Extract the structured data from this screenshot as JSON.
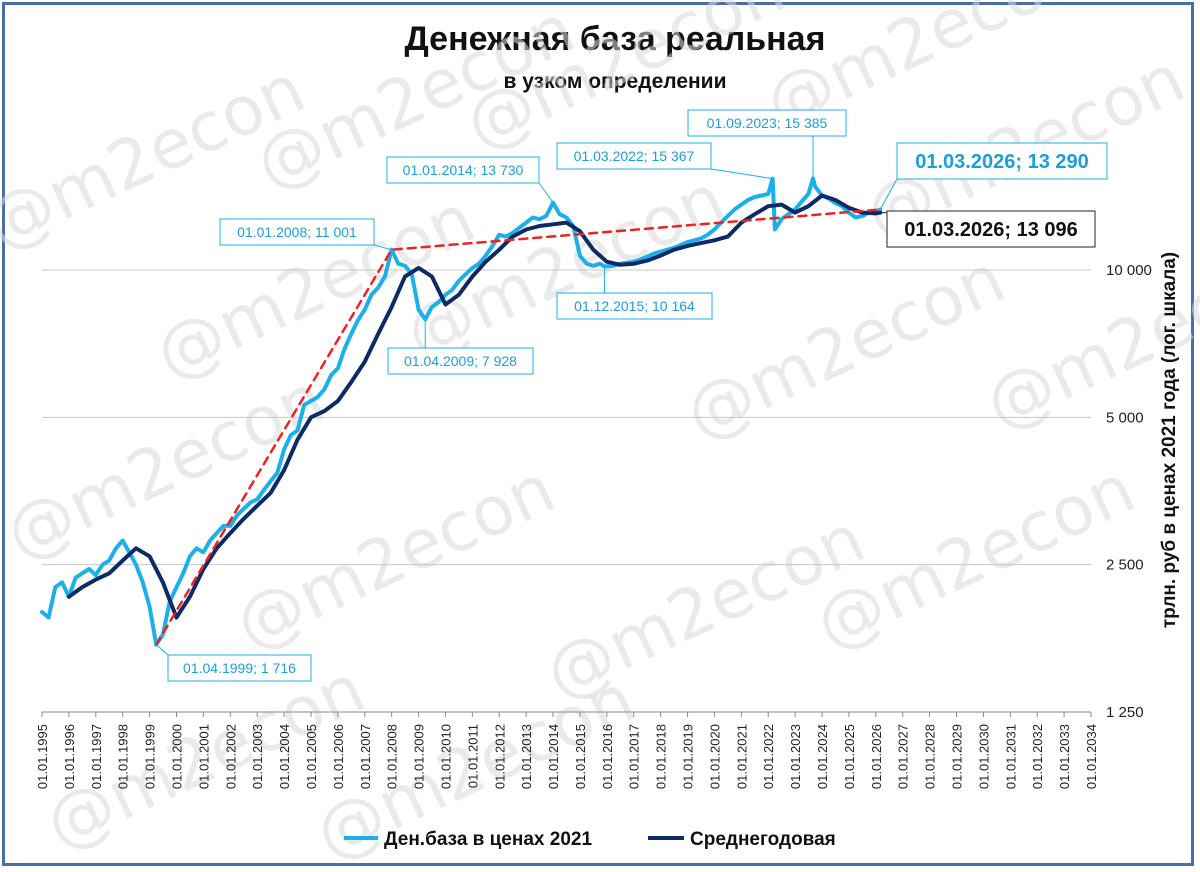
{
  "chart_data": {
    "type": "line",
    "title": "Денежная база реальная",
    "subtitle": "в узком определении",
    "ylabel": "трлн. руб  в ценах 2021 года (лог. шкала)",
    "yscale": "log",
    "ylim": [
      1250,
      17000
    ],
    "yticks": [
      1250,
      2500,
      5000,
      10000
    ],
    "ytick_labels": [
      "1 250",
      "2 500",
      "5 000",
      "10 000"
    ],
    "xlim": [
      "1995-01-01",
      "2034-01-01"
    ],
    "xtick_labels": [
      "01.01.1995",
      "01.01.1996",
      "01.01.1997",
      "01.01.1998",
      "01.01.1999",
      "01.01.2000",
      "01.01.2001",
      "01.01.2002",
      "01.01.2003",
      "01.01.2004",
      "01.01.2005",
      "01.01.2006",
      "01.01.2007",
      "01.01.2008",
      "01.01.2009",
      "01.01.2010",
      "01.01.2011",
      "01.01.2012",
      "01.01.2013",
      "01.01.2014",
      "01.01.2015",
      "01.01.2016",
      "01.01.2017",
      "01.01.2018",
      "01.01.2019",
      "01.01.2020",
      "01.01.2021",
      "01.01.2022",
      "01.01.2023",
      "01.01.2024",
      "01.01.2025",
      "01.01.2026",
      "01.01.2027",
      "01.01.2028",
      "01.01.2029",
      "01.01.2030",
      "01.01.2031",
      "01.01.2032",
      "01.01.2033",
      "01.01.2034"
    ],
    "grid": "horizontal",
    "legend_position": "bottom",
    "series": [
      {
        "name": "Ден.база в ценах 2021",
        "color": "#1cb0ea",
        "x": [
          "1995-01-01",
          "1995-04-01",
          "1995-07-01",
          "1995-10-01",
          "1996-01-01",
          "1996-04-01",
          "1996-07-01",
          "1996-10-01",
          "1997-01-01",
          "1997-04-01",
          "1997-07-01",
          "1997-10-01",
          "1998-01-01",
          "1998-04-01",
          "1998-07-01",
          "1998-10-01",
          "1999-01-01",
          "1999-04-01",
          "1999-07-01",
          "1999-10-01",
          "2000-01-01",
          "2000-04-01",
          "2000-07-01",
          "2000-10-01",
          "2001-01-01",
          "2001-04-01",
          "2001-07-01",
          "2001-10-01",
          "2002-01-01",
          "2002-04-01",
          "2002-07-01",
          "2002-10-01",
          "2003-01-01",
          "2003-04-01",
          "2003-07-01",
          "2003-10-01",
          "2004-01-01",
          "2004-04-01",
          "2004-07-01",
          "2004-10-01",
          "2005-01-01",
          "2005-04-01",
          "2005-07-01",
          "2005-10-01",
          "2006-01-01",
          "2006-04-01",
          "2006-07-01",
          "2006-10-01",
          "2007-01-01",
          "2007-04-01",
          "2007-07-01",
          "2007-10-01",
          "2008-01-01",
          "2008-04-01",
          "2008-07-01",
          "2008-10-01",
          "2009-01-01",
          "2009-04-01",
          "2009-07-01",
          "2009-10-01",
          "2010-01-01",
          "2010-04-01",
          "2010-07-01",
          "2010-10-01",
          "2011-01-01",
          "2011-04-01",
          "2011-07-01",
          "2011-10-01",
          "2012-01-01",
          "2012-04-01",
          "2012-07-01",
          "2012-10-01",
          "2013-01-01",
          "2013-04-01",
          "2013-07-01",
          "2013-10-01",
          "2014-01-01",
          "2014-04-01",
          "2014-07-01",
          "2014-10-01",
          "2015-01-01",
          "2015-04-01",
          "2015-07-01",
          "2015-10-01",
          "2015-12-01",
          "2016-04-01",
          "2016-07-01",
          "2016-10-01",
          "2017-01-01",
          "2017-04-01",
          "2017-07-01",
          "2017-10-01",
          "2018-01-01",
          "2018-04-01",
          "2018-07-01",
          "2018-10-01",
          "2019-01-01",
          "2019-04-01",
          "2019-07-01",
          "2019-10-01",
          "2020-01-01",
          "2020-04-01",
          "2020-07-01",
          "2020-10-01",
          "2021-01-01",
          "2021-04-01",
          "2021-07-01",
          "2021-10-01",
          "2022-01-01",
          "2022-03-01",
          "2022-04-01",
          "2022-07-01",
          "2022-10-01",
          "2023-01-01",
          "2023-04-01",
          "2023-07-01",
          "2023-09-01",
          "2023-10-01",
          "2024-01-01",
          "2024-04-01",
          "2024-07-01",
          "2024-10-01",
          "2025-01-01",
          "2025-04-01",
          "2025-07-01",
          "2025-10-01",
          "2026-01-01",
          "2026-03-01"
        ],
        "values": [
          2000,
          1950,
          2250,
          2300,
          2150,
          2350,
          2400,
          2450,
          2380,
          2500,
          2550,
          2700,
          2800,
          2650,
          2500,
          2300,
          2050,
          1716,
          1800,
          2100,
          2250,
          2400,
          2600,
          2700,
          2650,
          2800,
          2900,
          3000,
          3000,
          3150,
          3250,
          3350,
          3400,
          3550,
          3700,
          3850,
          4300,
          4600,
          4700,
          5300,
          5400,
          5500,
          5700,
          6100,
          6300,
          6900,
          7400,
          7900,
          8300,
          8900,
          9200,
          9700,
          11001,
          10300,
          10200,
          9800,
          8300,
          7928,
          8400,
          8600,
          8900,
          9100,
          9500,
          9800,
          10100,
          10300,
          10700,
          11200,
          11800,
          11700,
          11900,
          12200,
          12500,
          12800,
          12700,
          12900,
          13730,
          13000,
          12800,
          12300,
          10700,
          10300,
          10200,
          10300,
          10164,
          10200,
          10300,
          10350,
          10400,
          10500,
          10650,
          10800,
          10900,
          11000,
          11100,
          11250,
          11400,
          11500,
          11600,
          11800,
          12100,
          12500,
          12900,
          13300,
          13600,
          13900,
          14100,
          14200,
          14300,
          15367,
          12100,
          12700,
          13000,
          13300,
          13800,
          14300,
          15385,
          14800,
          14200,
          14000,
          13700,
          13500,
          13100,
          12800,
          12900,
          13100,
          13150,
          13290
        ]
      },
      {
        "name": "Среднегодовая",
        "color": "#0d2a66",
        "x": [
          "1996-01-01",
          "1996-07-01",
          "1997-01-01",
          "1997-07-01",
          "1998-01-01",
          "1998-07-01",
          "1999-01-01",
          "1999-07-01",
          "2000-01-01",
          "2000-07-01",
          "2001-01-01",
          "2001-07-01",
          "2002-01-01",
          "2002-07-01",
          "2003-01-01",
          "2003-07-01",
          "2004-01-01",
          "2004-07-01",
          "2005-01-01",
          "2005-07-01",
          "2006-01-01",
          "2006-07-01",
          "2007-01-01",
          "2007-07-01",
          "2008-01-01",
          "2008-07-01",
          "2009-01-01",
          "2009-07-01",
          "2010-01-01",
          "2010-07-01",
          "2011-01-01",
          "2011-07-01",
          "2012-01-01",
          "2012-07-01",
          "2013-01-01",
          "2013-07-01",
          "2014-01-01",
          "2014-07-01",
          "2015-01-01",
          "2015-07-01",
          "2016-01-01",
          "2016-07-01",
          "2017-01-01",
          "2017-07-01",
          "2018-01-01",
          "2018-07-01",
          "2019-01-01",
          "2019-07-01",
          "2020-01-01",
          "2020-07-01",
          "2021-01-01",
          "2021-07-01",
          "2022-01-01",
          "2022-07-01",
          "2023-01-01",
          "2023-07-01",
          "2024-01-01",
          "2024-07-01",
          "2025-01-01",
          "2025-07-01",
          "2026-01-01",
          "2026-03-01"
        ],
        "values": [
          2150,
          2250,
          2330,
          2400,
          2550,
          2700,
          2600,
          2300,
          1950,
          2150,
          2450,
          2700,
          2900,
          3100,
          3300,
          3500,
          3900,
          4500,
          5000,
          5150,
          5400,
          5900,
          6500,
          7400,
          8400,
          9700,
          10100,
          9700,
          8500,
          8900,
          9700,
          10400,
          11000,
          11700,
          12100,
          12300,
          12400,
          12500,
          12000,
          11000,
          10400,
          10250,
          10300,
          10450,
          10700,
          11000,
          11200,
          11350,
          11500,
          11700,
          12500,
          13000,
          13500,
          13600,
          13100,
          13500,
          14200,
          13900,
          13400,
          13100,
          13050,
          13096
        ]
      },
      {
        "name": "",
        "color": "#ee2222",
        "style": "dashed",
        "x": [
          "1999-04-01",
          "2008-01-01",
          "2026-03-01"
        ],
        "values": [
          1716,
          11001,
          13290
        ]
      }
    ],
    "annotations": [
      {
        "text": "01.04.1999; 1 716",
        "x": "1999-04-01",
        "y": 1716,
        "style": "cyan"
      },
      {
        "text": "01.01.2008; 11 001",
        "x": "2008-01-01",
        "y": 11001,
        "style": "cyan"
      },
      {
        "text": "01.04.2009; 7 928",
        "x": "2009-04-01",
        "y": 7928,
        "style": "cyan"
      },
      {
        "text": "01.01.2014; 13 730",
        "x": "2014-01-01",
        "y": 13730,
        "style": "cyan"
      },
      {
        "text": "01.12.2015; 10 164",
        "x": "2015-12-01",
        "y": 10164,
        "style": "cyan"
      },
      {
        "text": "01.03.2022; 15 367",
        "x": "2022-03-01",
        "y": 15367,
        "style": "cyan"
      },
      {
        "text": "01.09.2023; 15 385",
        "x": "2023-09-01",
        "y": 15385,
        "style": "cyan"
      },
      {
        "text": "01.03.2026; 13 290",
        "x": "2026-03-01",
        "y": 13290,
        "style": "cyan-large"
      },
      {
        "text": "01.03.2026; 13 096",
        "x": "2026-03-01",
        "y": 13096,
        "style": "black-large"
      }
    ],
    "watermark": "@m2econ"
  }
}
